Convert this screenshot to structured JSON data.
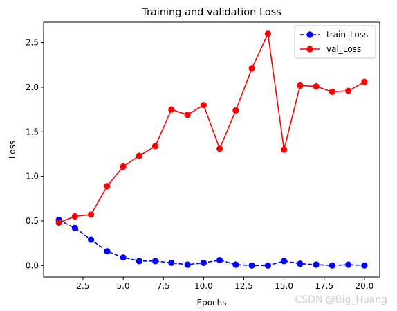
{
  "chart_data": {
    "type": "line",
    "title": "Training and validation Loss",
    "xlabel": "Epochs",
    "ylabel": "Loss",
    "x": [
      1,
      2,
      3,
      4,
      5,
      6,
      7,
      8,
      9,
      10,
      11,
      12,
      13,
      14,
      15,
      16,
      17,
      18,
      19,
      20
    ],
    "xlim": [
      0.05,
      20.95
    ],
    "ylim": [
      -0.13,
      2.73
    ],
    "xticks": [
      2.5,
      5.0,
      7.5,
      10.0,
      12.5,
      15.0,
      17.5,
      20.0
    ],
    "xtick_labels": [
      "2.5",
      "5.0",
      "7.5",
      "10.0",
      "12.5",
      "15.0",
      "17.5",
      "20.0"
    ],
    "yticks": [
      0.0,
      0.5,
      1.0,
      1.5,
      2.0,
      2.5
    ],
    "ytick_labels": [
      "0.0",
      "0.5",
      "1.0",
      "1.5",
      "2.0",
      "2.5"
    ],
    "grid": false,
    "legend_position": "top-right",
    "series": [
      {
        "name": "train_Loss",
        "color": "#0000ff",
        "linestyle": "dashed",
        "marker": "circle",
        "values": [
          0.51,
          0.42,
          0.29,
          0.16,
          0.09,
          0.05,
          0.05,
          0.03,
          0.01,
          0.03,
          0.06,
          0.01,
          0.0,
          0.0,
          0.05,
          0.02,
          0.01,
          0.0,
          0.01,
          0.0
        ]
      },
      {
        "name": "val_Loss",
        "color": "#ff0000",
        "linestyle": "solid",
        "marker": "circle",
        "values": [
          0.48,
          0.55,
          0.57,
          0.89,
          1.11,
          1.23,
          1.34,
          1.75,
          1.69,
          1.8,
          1.31,
          1.74,
          2.21,
          2.6,
          1.3,
          2.02,
          2.01,
          1.95,
          1.96,
          2.06
        ]
      }
    ]
  },
  "watermark": "CSDN @Big_Huang"
}
